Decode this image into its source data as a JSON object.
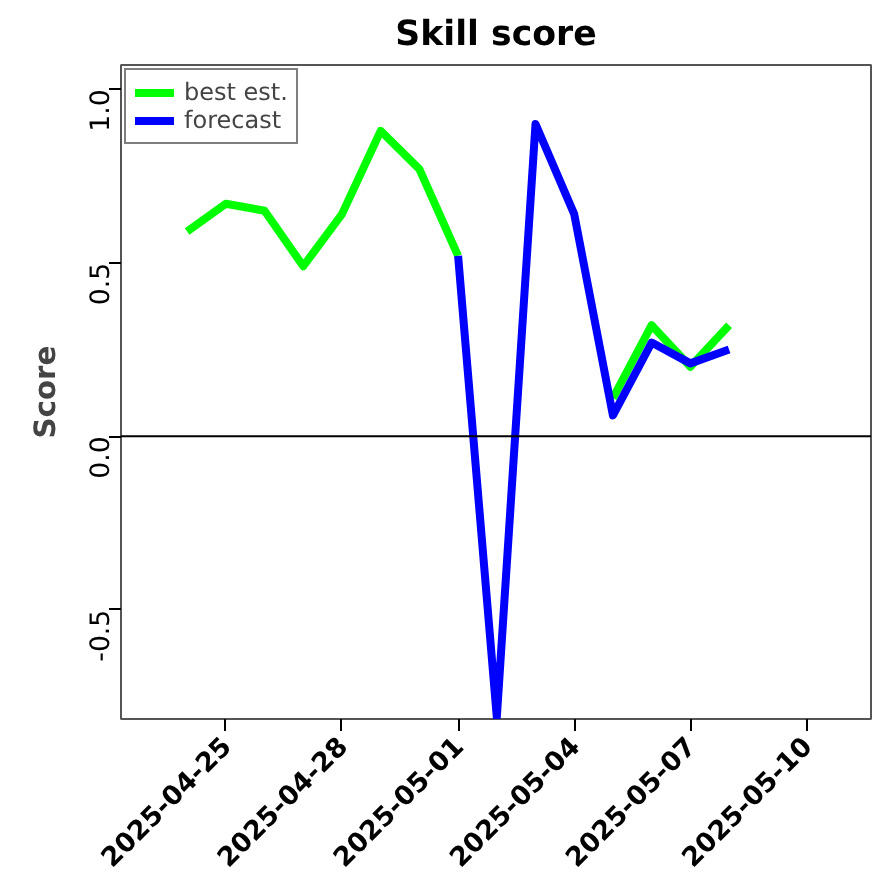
{
  "chart_data": {
    "type": "line",
    "title": "Skill score",
    "ylabel": "Score",
    "x": [
      "2025-04-24",
      "2025-04-25",
      "2025-04-26",
      "2025-04-27",
      "2025-04-28",
      "2025-04-29",
      "2025-04-30",
      "2025-05-01",
      "2025-05-02",
      "2025-05-03",
      "2025-05-04",
      "2025-05-05",
      "2025-05-06",
      "2025-05-07",
      "2025-05-08"
    ],
    "series": [
      {
        "name": "best est.",
        "color": "#00ff00",
        "values": [
          0.59,
          0.67,
          0.65,
          0.49,
          0.64,
          0.88,
          0.77,
          0.52,
          null,
          null,
          null,
          0.11,
          0.32,
          0.2,
          0.32
        ]
      },
      {
        "name": "forecast",
        "color": "#0000ff",
        "values": [
          null,
          null,
          null,
          null,
          null,
          null,
          null,
          0.52,
          -0.81,
          0.9,
          0.64,
          0.06,
          0.27,
          0.21,
          0.25
        ]
      }
    ],
    "xlim": [
      "2025-04-22T07:00",
      "2025-05-11T16:00"
    ],
    "xticks": [
      "2025-04-25",
      "2025-04-28",
      "2025-05-01",
      "2025-05-04",
      "2025-05-07",
      "2025-05-10"
    ],
    "ylim": [
      -0.815,
      1.07
    ],
    "yticks": [
      -0.5,
      {
        "value": 0,
        "label": "0.0"
      },
      0.5,
      {
        "value": 1,
        "label": "1.0"
      }
    ],
    "ref_lines": [
      {
        "axis": "y",
        "value": 0,
        "color": "#000000"
      }
    ],
    "legend": "top left",
    "grid": false
  }
}
